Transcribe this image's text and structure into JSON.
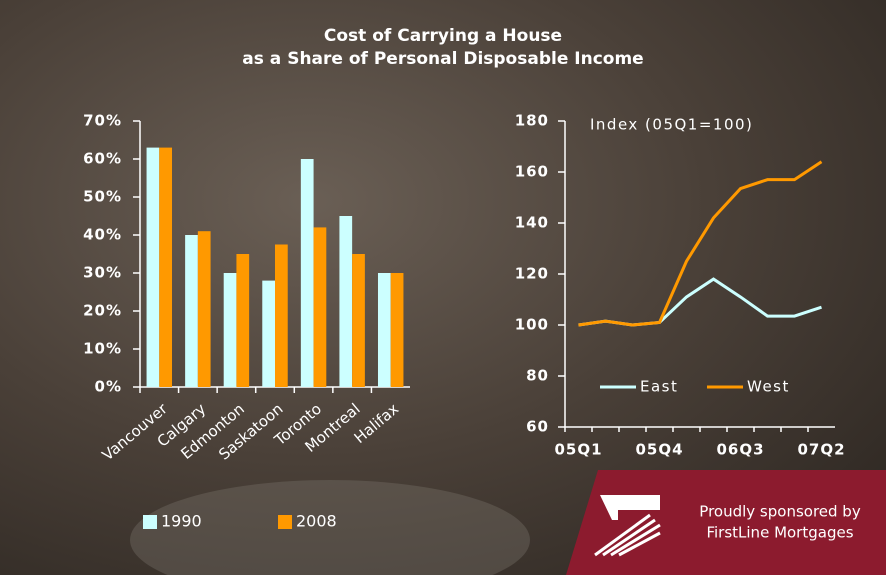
{
  "title": "Cost of Carrying a House",
  "subtitle": "as a Share of Personal Disposable Income",
  "sponsor": [
    "Proudly sponsored by",
    "FirstLine Mortgages"
  ],
  "chart_data": [
    {
      "type": "bar",
      "categories": [
        "Vancouver",
        "Calgary",
        "Edmonton",
        "Saskatoon",
        "Toronto",
        "Montreal",
        "Halifax"
      ],
      "series": [
        {
          "name": "1990",
          "color": "#ccffff",
          "values": [
            63,
            40,
            30,
            28,
            60,
            45,
            30
          ]
        },
        {
          "name": "2008",
          "color": "#ff9900",
          "values": [
            63,
            41,
            35,
            37.5,
            42,
            35,
            30
          ]
        }
      ],
      "ylim": [
        0,
        70
      ],
      "yticks": [
        {
          "value": 0,
          "label": "0%"
        },
        {
          "value": 10,
          "label": "10%"
        },
        {
          "value": 20,
          "label": "20%"
        },
        {
          "value": 30,
          "label": "30%"
        },
        {
          "value": 40,
          "label": "40%"
        },
        {
          "value": 50,
          "label": "50%"
        },
        {
          "value": 60,
          "label": "60%"
        },
        {
          "value": 70,
          "label": "70%"
        }
      ],
      "legend": "bottom"
    },
    {
      "type": "line",
      "annotation": "Index (05Q1=100)",
      "categories": [
        "05Q1",
        null,
        null,
        "05Q4",
        null,
        null,
        "06Q3",
        null,
        null,
        "07Q2"
      ],
      "series": [
        {
          "name": "East",
          "color": "#ccffff",
          "values": [
            100,
            101.5,
            100,
            101,
            111,
            118,
            111,
            103.5,
            103.5,
            107
          ]
        },
        {
          "name": "West",
          "color": "#ff9900",
          "values": [
            100,
            101.5,
            100,
            101,
            125,
            142,
            153.5,
            157,
            157,
            164
          ]
        }
      ],
      "ylim": [
        60,
        180
      ],
      "yticks": [
        60,
        80,
        100,
        120,
        140,
        160,
        180
      ],
      "legend": "lower right"
    }
  ]
}
